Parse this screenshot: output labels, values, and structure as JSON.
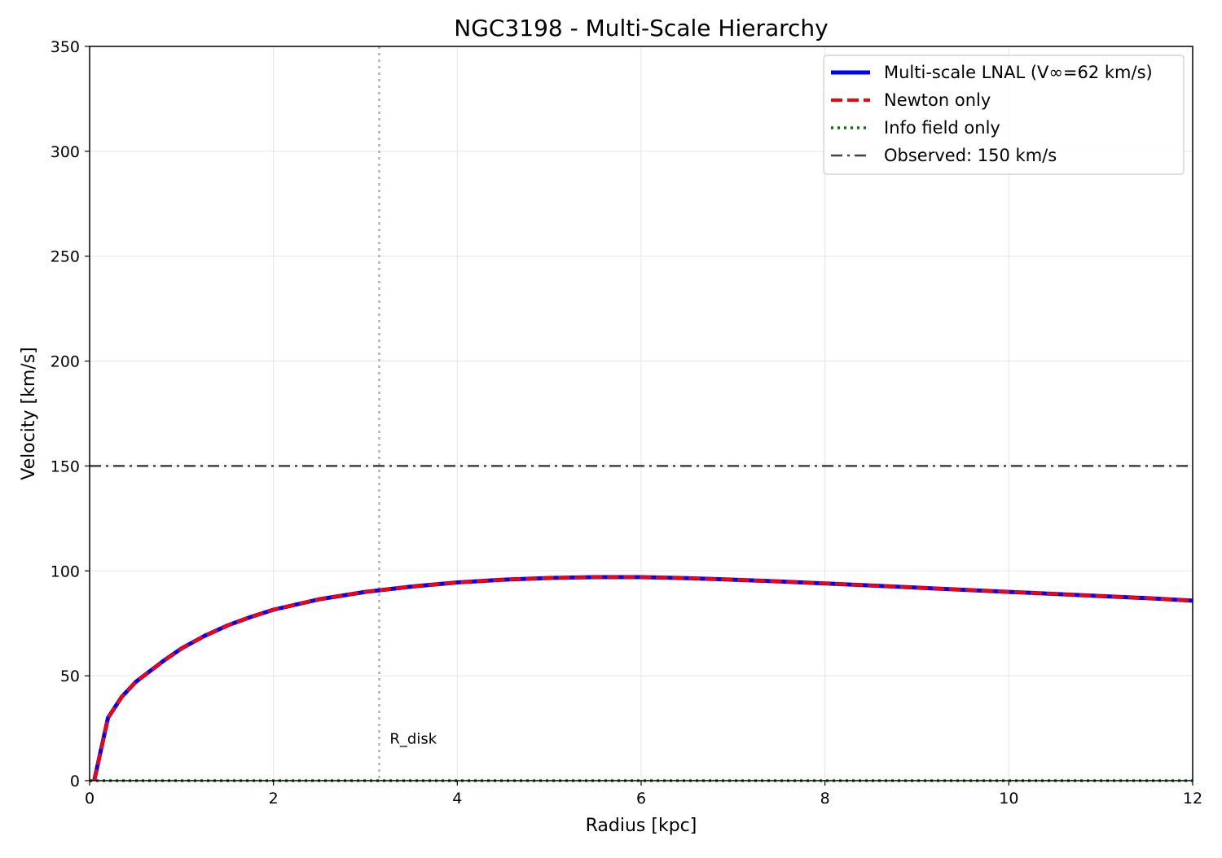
{
  "chart_data": {
    "type": "line",
    "title": "NGC3198 - Multi-Scale Hierarchy",
    "xlabel": "Radius [kpc]",
    "ylabel": "Velocity [km/s]",
    "xlim": [
      0,
      12
    ],
    "ylim": [
      0,
      350
    ],
    "xticks": [
      0,
      2,
      4,
      6,
      8,
      10,
      12
    ],
    "yticks": [
      0,
      50,
      100,
      150,
      200,
      250,
      300,
      350
    ],
    "grid": true,
    "legend_position": "top-right",
    "series": [
      {
        "name": "Multi-scale LNAL (V∞=62 km/s)",
        "color": "#0000ff",
        "style": "solid",
        "x": [
          0.05,
          0.2,
          0.35,
          0.5,
          0.65,
          0.8,
          1.0,
          1.25,
          1.5,
          1.75,
          2.0,
          2.5,
          3.0,
          3.5,
          4.0,
          4.5,
          5.0,
          5.5,
          6.0,
          6.5,
          7.0,
          7.5,
          8.0,
          8.5,
          9.0,
          9.5,
          10.0,
          10.5,
          11.0,
          11.5,
          12.0
        ],
        "y": [
          0,
          30,
          40,
          47,
          52,
          57,
          63,
          69,
          74,
          78,
          81.5,
          86.5,
          90,
          92.5,
          94.5,
          95.8,
          96.6,
          97,
          97,
          96.5,
          95.8,
          95,
          94,
          93,
          92,
          91,
          90,
          89,
          88,
          87,
          85.8
        ]
      },
      {
        "name": "Newton only",
        "color": "#ff0000",
        "style": "dashed",
        "x": [
          0.05,
          0.2,
          0.35,
          0.5,
          0.65,
          0.8,
          1.0,
          1.25,
          1.5,
          1.75,
          2.0,
          2.5,
          3.0,
          3.5,
          4.0,
          4.5,
          5.0,
          5.5,
          6.0,
          6.5,
          7.0,
          7.5,
          8.0,
          8.5,
          9.0,
          9.5,
          10.0,
          10.5,
          11.0,
          11.5,
          12.0
        ],
        "y": [
          0,
          30,
          40,
          47,
          52,
          57,
          63,
          69,
          74,
          78,
          81.5,
          86.5,
          90,
          92.5,
          94.5,
          95.8,
          96.6,
          97,
          97,
          96.5,
          95.8,
          95,
          94,
          93,
          92,
          91,
          90,
          89,
          88,
          87,
          85.8
        ]
      },
      {
        "name": "Info field only",
        "color": "#008000",
        "style": "dotted",
        "x": [
          0,
          12
        ],
        "y": [
          0,
          0
        ]
      },
      {
        "name": "Observed: 150 km/s",
        "color": "#404040",
        "style": "dashdot",
        "x": [
          0,
          12
        ],
        "y": [
          150,
          150
        ]
      }
    ],
    "annotations": [
      {
        "type": "vline",
        "x": 3.15,
        "label": "R_disk",
        "color": "#b0b0b0",
        "style": "dotted",
        "label_y": 20
      }
    ]
  }
}
